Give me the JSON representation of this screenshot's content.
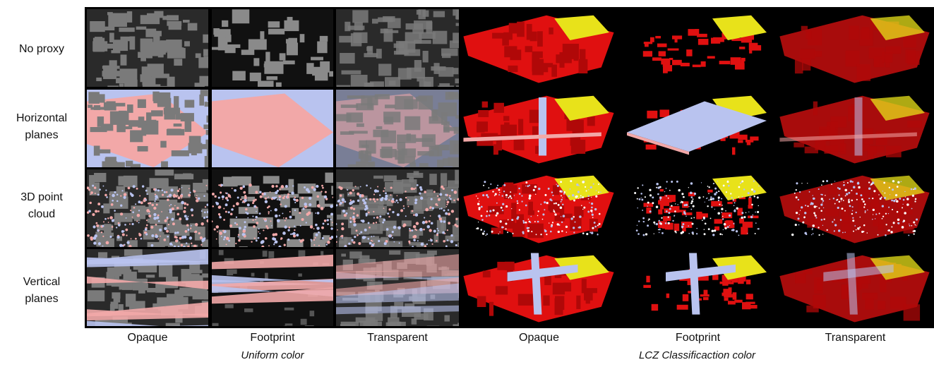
{
  "rows": [
    {
      "label": "No proxy"
    },
    {
      "label": "Horizontal\nplanes"
    },
    {
      "label": "3D point\ncloud"
    },
    {
      "label": "Vertical\nplanes"
    }
  ],
  "columns": [
    {
      "label": "Opaque"
    },
    {
      "label": "Footprint"
    },
    {
      "label": "Transparent"
    },
    {
      "label": "Opaque"
    },
    {
      "label": "Footprint"
    },
    {
      "label": "Transparent"
    }
  ],
  "groups": [
    {
      "label": "Uniform color"
    },
    {
      "label": "LCZ Classificaction color"
    }
  ],
  "colors": {
    "building_gray": "#7a7a7a",
    "proxy_pink": "#f2a8a8",
    "proxy_blue": "#b9c3ef",
    "lcz_red": "#e01010",
    "lcz_yellow": "#e8e21a",
    "background": "#000000"
  }
}
